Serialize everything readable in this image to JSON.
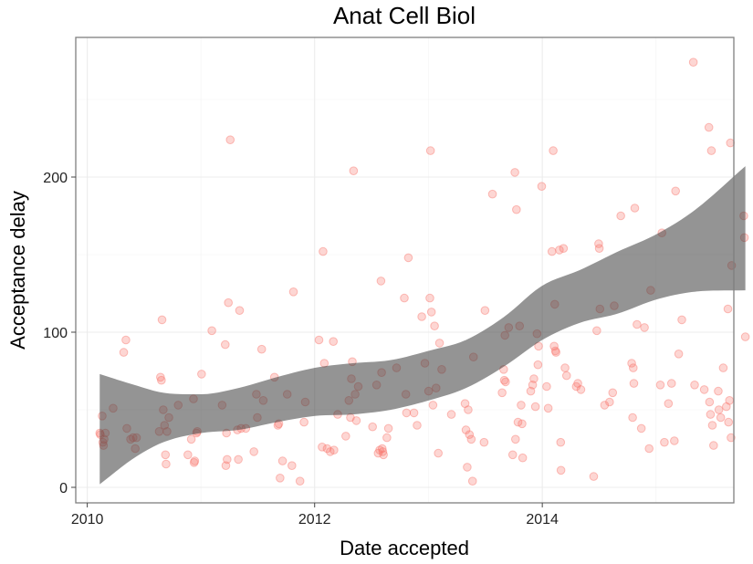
{
  "chart_data": {
    "type": "scatter",
    "title": "Anat Cell Biol",
    "xlabel": "Date accepted",
    "ylabel": "Acceptance delay",
    "x_scale": "date",
    "xlim": [
      "2009-11-25",
      "2015-09-08"
    ],
    "ylim": [
      -10,
      290
    ],
    "x_ticks": [
      {
        "value": "2010-01-01",
        "label": "2010"
      },
      {
        "value": "2012-01-01",
        "label": "2012"
      },
      {
        "value": "2014-01-01",
        "label": "2014"
      }
    ],
    "y_ticks": [
      {
        "value": 0,
        "label": "0"
      },
      {
        "value": 100,
        "label": "100"
      },
      {
        "value": 200,
        "label": "200"
      }
    ],
    "grid": true,
    "point_color": "#f8766d",
    "point_opacity": 0.3,
    "band_color": "#3d3d3d",
    "band_opacity": 0.55,
    "series": [
      {
        "kind": "points",
        "points": [
          [
            "2010-02-10",
            35
          ],
          [
            "2010-02-12",
            34
          ],
          [
            "2010-02-18",
            46
          ],
          [
            "2010-02-20",
            29
          ],
          [
            "2010-02-22",
            27
          ],
          [
            "2010-02-24",
            31
          ],
          [
            "2010-02-28",
            35
          ],
          [
            "2010-03-25",
            51
          ],
          [
            "2010-04-28",
            87
          ],
          [
            "2010-05-05",
            95
          ],
          [
            "2010-05-08",
            38
          ],
          [
            "2010-05-20",
            31
          ],
          [
            "2010-05-28",
            32
          ],
          [
            "2010-06-04",
            25
          ],
          [
            "2010-06-08",
            32
          ],
          [
            "2010-08-20",
            36
          ],
          [
            "2010-08-24",
            71
          ],
          [
            "2010-08-27",
            69
          ],
          [
            "2010-08-29",
            108
          ],
          [
            "2010-09-02",
            50
          ],
          [
            "2010-09-06",
            40
          ],
          [
            "2010-09-09",
            21
          ],
          [
            "2010-09-11",
            15
          ],
          [
            "2010-09-14",
            36
          ],
          [
            "2010-09-20",
            45
          ],
          [
            "2010-10-20",
            53
          ],
          [
            "2010-11-20",
            21
          ],
          [
            "2010-12-01",
            31
          ],
          [
            "2010-12-08",
            57
          ],
          [
            "2010-12-10",
            16
          ],
          [
            "2010-12-12",
            17
          ],
          [
            "2010-12-18",
            35
          ],
          [
            "2010-12-20",
            36
          ],
          [
            "2011-01-03",
            73
          ],
          [
            "2011-02-05",
            101
          ],
          [
            "2011-03-10",
            53
          ],
          [
            "2011-03-20",
            92
          ],
          [
            "2011-03-22",
            14
          ],
          [
            "2011-03-24",
            35
          ],
          [
            "2011-03-26",
            18
          ],
          [
            "2011-03-30",
            119
          ],
          [
            "2011-04-05",
            224
          ],
          [
            "2011-04-28",
            37
          ],
          [
            "2011-05-01",
            18
          ],
          [
            "2011-05-05",
            114
          ],
          [
            "2011-05-10",
            38
          ],
          [
            "2011-05-25",
            38
          ],
          [
            "2011-06-20",
            23
          ],
          [
            "2011-06-28",
            60
          ],
          [
            "2011-07-01",
            45
          ],
          [
            "2011-07-15",
            89
          ],
          [
            "2011-07-20",
            56
          ],
          [
            "2011-08-25",
            71
          ],
          [
            "2011-09-05",
            40
          ],
          [
            "2011-09-08",
            41
          ],
          [
            "2011-09-12",
            6
          ],
          [
            "2011-09-20",
            17
          ],
          [
            "2011-10-05",
            60
          ],
          [
            "2011-10-20",
            14
          ],
          [
            "2011-10-25",
            126
          ],
          [
            "2011-11-15",
            4
          ],
          [
            "2011-11-28",
            42
          ],
          [
            "2011-12-02",
            55
          ],
          [
            "2012-01-15",
            95
          ],
          [
            "2012-01-25",
            26
          ],
          [
            "2012-01-28",
            152
          ],
          [
            "2012-02-01",
            80
          ],
          [
            "2012-02-10",
            25
          ],
          [
            "2012-02-20",
            23
          ],
          [
            "2012-03-01",
            94
          ],
          [
            "2012-03-03",
            24
          ],
          [
            "2012-03-15",
            47
          ],
          [
            "2012-04-10",
            33
          ],
          [
            "2012-04-20",
            56
          ],
          [
            "2012-04-25",
            45
          ],
          [
            "2012-04-28",
            70
          ],
          [
            "2012-05-01",
            81
          ],
          [
            "2012-05-05",
            204
          ],
          [
            "2012-05-10",
            60
          ],
          [
            "2012-05-14",
            43
          ],
          [
            "2012-05-20",
            65
          ],
          [
            "2012-07-05",
            39
          ],
          [
            "2012-07-18",
            66
          ],
          [
            "2012-07-23",
            22
          ],
          [
            "2012-07-28",
            24
          ],
          [
            "2012-08-01",
            133
          ],
          [
            "2012-08-03",
            74
          ],
          [
            "2012-08-05",
            25
          ],
          [
            "2012-08-07",
            23
          ],
          [
            "2012-08-09",
            21
          ],
          [
            "2012-08-20",
            32
          ],
          [
            "2012-08-25",
            38
          ],
          [
            "2012-09-20",
            77
          ],
          [
            "2012-10-15",
            122
          ],
          [
            "2012-10-20",
            60
          ],
          [
            "2012-10-22",
            48
          ],
          [
            "2012-10-28",
            148
          ],
          [
            "2012-11-15",
            48
          ],
          [
            "2012-11-25",
            40
          ],
          [
            "2012-12-10",
            110
          ],
          [
            "2012-12-20",
            80
          ],
          [
            "2013-01-01",
            62
          ],
          [
            "2013-01-05",
            122
          ],
          [
            "2013-01-07",
            217
          ],
          [
            "2013-01-10",
            113
          ],
          [
            "2013-01-15",
            53
          ],
          [
            "2013-01-20",
            104
          ],
          [
            "2013-01-25",
            64
          ],
          [
            "2013-02-01",
            22
          ],
          [
            "2013-02-05",
            93
          ],
          [
            "2013-02-12",
            76
          ],
          [
            "2013-03-15",
            47
          ],
          [
            "2013-04-28",
            54
          ],
          [
            "2013-05-01",
            37
          ],
          [
            "2013-05-05",
            13
          ],
          [
            "2013-05-08",
            50
          ],
          [
            "2013-05-12",
            34
          ],
          [
            "2013-05-18",
            31
          ],
          [
            "2013-05-22",
            4
          ],
          [
            "2013-05-25",
            84
          ],
          [
            "2013-06-28",
            29
          ],
          [
            "2013-07-01",
            114
          ],
          [
            "2013-07-25",
            189
          ],
          [
            "2013-08-25",
            61
          ],
          [
            "2013-08-30",
            76
          ],
          [
            "2013-09-01",
            69
          ],
          [
            "2013-09-03",
            98
          ],
          [
            "2013-09-05",
            68
          ],
          [
            "2013-09-15",
            103
          ],
          [
            "2013-09-28",
            21
          ],
          [
            "2013-10-05",
            203
          ],
          [
            "2013-10-07",
            31
          ],
          [
            "2013-10-10",
            179
          ],
          [
            "2013-10-15",
            42
          ],
          [
            "2013-10-20",
            104
          ],
          [
            "2013-10-25",
            53
          ],
          [
            "2013-10-28",
            41
          ],
          [
            "2013-10-30",
            19
          ],
          [
            "2013-11-25",
            62
          ],
          [
            "2013-12-01",
            66
          ],
          [
            "2013-12-05",
            70
          ],
          [
            "2013-12-10",
            52
          ],
          [
            "2013-12-15",
            99
          ],
          [
            "2013-12-18",
            79
          ],
          [
            "2013-12-20",
            91
          ],
          [
            "2013-12-30",
            194
          ],
          [
            "2014-01-15",
            65
          ],
          [
            "2014-01-20",
            51
          ],
          [
            "2014-02-01",
            152
          ],
          [
            "2014-02-05",
            217
          ],
          [
            "2014-02-08",
            91
          ],
          [
            "2014-02-10",
            118
          ],
          [
            "2014-02-12",
            88
          ],
          [
            "2014-02-14",
            87
          ],
          [
            "2014-02-25",
            153
          ],
          [
            "2014-03-01",
            29
          ],
          [
            "2014-03-02",
            11
          ],
          [
            "2014-03-10",
            154
          ],
          [
            "2014-03-15",
            77
          ],
          [
            "2014-03-20",
            72
          ],
          [
            "2014-04-20",
            65
          ],
          [
            "2014-04-25",
            67
          ],
          [
            "2014-05-05",
            63
          ],
          [
            "2014-06-15",
            7
          ],
          [
            "2014-06-25",
            101
          ],
          [
            "2014-07-01",
            157
          ],
          [
            "2014-07-03",
            154
          ],
          [
            "2014-07-05",
            115
          ],
          [
            "2014-07-20",
            53
          ],
          [
            "2014-08-05",
            55
          ],
          [
            "2014-08-15",
            61
          ],
          [
            "2014-08-20",
            117
          ],
          [
            "2014-09-10",
            175
          ],
          [
            "2014-10-15",
            80
          ],
          [
            "2014-10-18",
            45
          ],
          [
            "2014-10-20",
            77
          ],
          [
            "2014-10-22",
            67
          ],
          [
            "2014-10-25",
            180
          ],
          [
            "2014-11-01",
            105
          ],
          [
            "2014-11-15",
            38
          ],
          [
            "2014-11-25",
            103
          ],
          [
            "2014-12-10",
            25
          ],
          [
            "2014-12-15",
            127
          ],
          [
            "2015-01-15",
            66
          ],
          [
            "2015-01-20",
            164
          ],
          [
            "2015-01-28",
            29
          ],
          [
            "2015-02-10",
            54
          ],
          [
            "2015-02-20",
            67
          ],
          [
            "2015-03-01",
            30
          ],
          [
            "2015-03-05",
            191
          ],
          [
            "2015-03-15",
            86
          ],
          [
            "2015-03-25",
            108
          ],
          [
            "2015-05-01",
            274
          ],
          [
            "2015-05-05",
            66
          ],
          [
            "2015-06-05",
            63
          ],
          [
            "2015-06-20",
            232
          ],
          [
            "2015-06-22",
            55
          ],
          [
            "2015-06-25",
            47
          ],
          [
            "2015-06-28",
            217
          ],
          [
            "2015-07-01",
            40
          ],
          [
            "2015-07-05",
            27
          ],
          [
            "2015-07-20",
            62
          ],
          [
            "2015-07-22",
            50
          ],
          [
            "2015-07-28",
            45
          ],
          [
            "2015-08-05",
            77
          ],
          [
            "2015-08-15",
            52
          ],
          [
            "2015-08-20",
            115
          ],
          [
            "2015-08-22",
            42
          ],
          [
            "2015-08-25",
            56
          ],
          [
            "2015-08-28",
            222
          ],
          [
            "2015-08-30",
            32
          ],
          [
            "2015-09-01",
            143
          ],
          [
            "2015-10-10",
            175
          ],
          [
            "2015-10-12",
            161
          ],
          [
            "2015-10-15",
            97
          ]
        ]
      },
      {
        "kind": "band",
        "upper": [
          [
            "2010-02-10",
            73
          ],
          [
            "2010-06-01",
            66
          ],
          [
            "2010-09-01",
            61
          ],
          [
            "2011-01-01",
            60
          ],
          [
            "2011-05-01",
            64
          ],
          [
            "2011-09-01",
            71
          ],
          [
            "2012-01-01",
            77
          ],
          [
            "2012-05-01",
            80
          ],
          [
            "2012-09-01",
            82
          ],
          [
            "2013-01-01",
            88
          ],
          [
            "2013-05-01",
            95
          ],
          [
            "2013-09-01",
            110
          ],
          [
            "2014-01-01",
            130
          ],
          [
            "2014-05-01",
            140
          ],
          [
            "2014-09-01",
            152
          ],
          [
            "2015-01-01",
            163
          ],
          [
            "2015-05-01",
            178
          ],
          [
            "2015-10-15",
            207
          ]
        ],
        "lower": [
          [
            "2010-02-10",
            2
          ],
          [
            "2010-06-01",
            19
          ],
          [
            "2010-09-01",
            29
          ],
          [
            "2011-01-01",
            35
          ],
          [
            "2011-05-01",
            37
          ],
          [
            "2011-09-01",
            42
          ],
          [
            "2012-01-01",
            46
          ],
          [
            "2012-05-01",
            47
          ],
          [
            "2012-09-01",
            50
          ],
          [
            "2013-01-01",
            56
          ],
          [
            "2013-05-01",
            64
          ],
          [
            "2013-09-01",
            78
          ],
          [
            "2014-01-01",
            95
          ],
          [
            "2014-05-01",
            106
          ],
          [
            "2014-09-01",
            112
          ],
          [
            "2015-01-01",
            121
          ],
          [
            "2015-05-01",
            126
          ],
          [
            "2015-10-15",
            127
          ]
        ]
      }
    ]
  }
}
